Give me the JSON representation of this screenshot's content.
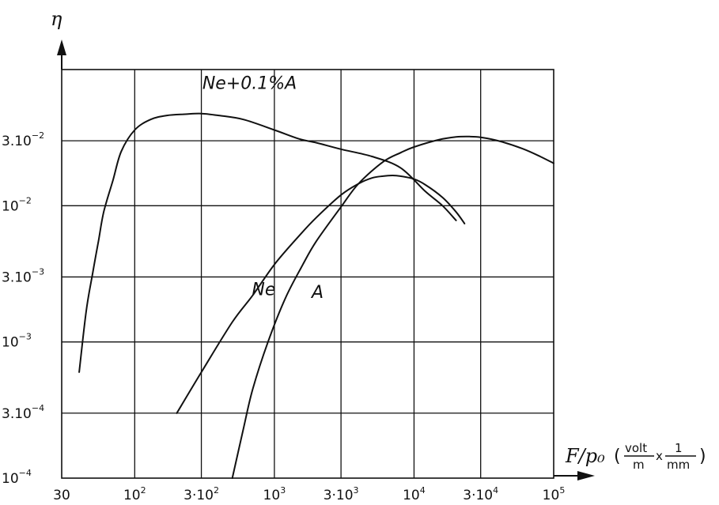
{
  "chart_data": {
    "type": "line",
    "title": "",
    "ylabel": "η",
    "xlabel": "F/p₀",
    "xunit_num1": "volt",
    "xunit_den1": "m",
    "xunit_times": "x",
    "xunit_num2": "1",
    "xunit_den2": "mm",
    "xscale": "log",
    "yscale": "log",
    "xlim": [
      30,
      100000
    ],
    "ylim": [
      0.0001,
      0.1
    ],
    "grid": true,
    "x_ticks": [
      {
        "value": 30,
        "base": "30",
        "exp": ""
      },
      {
        "value": 100,
        "base": "10",
        "exp": "2"
      },
      {
        "value": 300,
        "base": "3·10",
        "exp": "2"
      },
      {
        "value": 1000,
        "base": "10",
        "exp": "3"
      },
      {
        "value": 3000,
        "base": "3·10",
        "exp": "3"
      },
      {
        "value": 10000,
        "base": "10",
        "exp": "4"
      },
      {
        "value": 30000,
        "base": "3·10",
        "exp": "4"
      },
      {
        "value": 100000,
        "base": "10",
        "exp": "5"
      }
    ],
    "y_ticks": [
      {
        "value": 0.0001,
        "base": "10",
        "exp": "−4"
      },
      {
        "value": 0.0003,
        "base": "3.10",
        "exp": "−4"
      },
      {
        "value": 0.001,
        "base": "10",
        "exp": "−3"
      },
      {
        "value": 0.003,
        "base": "3.10",
        "exp": "−3"
      },
      {
        "value": 0.01,
        "base": "10",
        "exp": "−2"
      },
      {
        "value": 0.03,
        "base": "3.10",
        "exp": "−2"
      }
    ],
    "series": [
      {
        "name": "Ne+0.1%A",
        "label_at": [
          305,
          0.072
        ],
        "x": [
          40,
          45,
          50,
          55,
          60,
          70,
          80,
          100,
          130,
          170,
          230,
          300,
          400,
          600,
          1000,
          1500,
          2000,
          3000,
          5000,
          8000,
          12000,
          16000,
          20000
        ],
        "y": [
          0.0006,
          0.0017,
          0.0032,
          0.0055,
          0.009,
          0.0155,
          0.025,
          0.036,
          0.043,
          0.046,
          0.047,
          0.0475,
          0.046,
          0.043,
          0.036,
          0.031,
          0.029,
          0.026,
          0.023,
          0.019,
          0.0128,
          0.01,
          0.0078
        ]
      },
      {
        "name": "Ne",
        "label_at": [
          690,
          0.0022
        ],
        "x": [
          200,
          300,
          500,
          700,
          1000,
          1500,
          2000,
          3000,
          4000,
          5000,
          6000,
          7000,
          8000,
          10000,
          12000,
          16000,
          20000,
          23000
        ],
        "y": [
          0.0003,
          0.0006,
          0.0014,
          0.0022,
          0.0037,
          0.006,
          0.0082,
          0.012,
          0.0145,
          0.016,
          0.0165,
          0.0167,
          0.0165,
          0.0157,
          0.0143,
          0.0115,
          0.009,
          0.0074
        ]
      },
      {
        "name": "A",
        "label_at": [
          1850,
          0.0021
        ],
        "x": [
          500,
          600,
          700,
          900,
          1200,
          1600,
          2000,
          3000,
          4000,
          6000,
          8000,
          10000,
          15000,
          20000,
          25000,
          30000,
          40000,
          60000,
          80000,
          100000
        ],
        "y": [
          0.0001,
          0.00023,
          0.00045,
          0.001,
          0.0021,
          0.0037,
          0.0055,
          0.0098,
          0.0145,
          0.021,
          0.0245,
          0.027,
          0.0305,
          0.032,
          0.0322,
          0.0318,
          0.03,
          0.0262,
          0.023,
          0.0205
        ]
      }
    ]
  }
}
